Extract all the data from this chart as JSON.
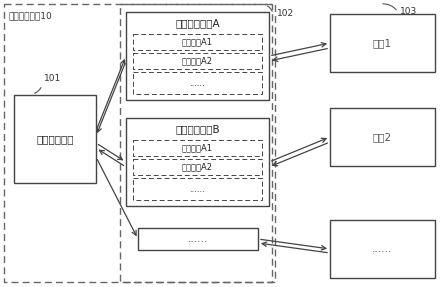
{
  "title_sys": "事务管理系统10",
  "label_101": "101",
  "label_102": "102",
  "label_103": "103",
  "box_coordinator": "事务协调模块",
  "box_adapterA_title": "事务适配模块A",
  "box_adapterB_title": "事务适配模块B",
  "box_adapterA_sub1": "通信接口A1",
  "box_adapterA_sub2": "通信接口A2",
  "box_adapterA_sub3": "......",
  "box_adapterB_sub1": "通信接口A1",
  "box_adapterB_sub2": "通信接口A2",
  "box_adapterB_sub3": "......",
  "box_adapter_dots": "......",
  "box_service1": "服务1",
  "box_service2": "服务2",
  "box_service_dots": "......",
  "bg_color": "#ffffff",
  "box_fill": "#ffffff",
  "box_edge": "#444444",
  "dashed_edge": "#666666",
  "arrow_color": "#444444",
  "font_size_main": 7.5,
  "font_size_sub": 6.0,
  "font_size_label": 6.5,
  "font_size_title": 6.5
}
